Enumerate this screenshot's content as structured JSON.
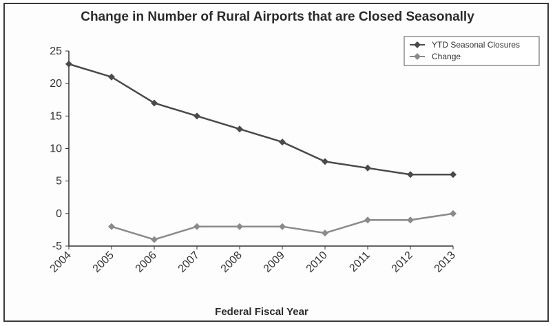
{
  "chart_data": {
    "type": "line",
    "title": "Change in Number of Rural Airports that are Closed Seasonally",
    "xlabel": "Federal Fiscal Year",
    "ylabel": "",
    "categories": [
      "2004",
      "2005",
      "2006",
      "2007",
      "2008",
      "2009",
      "2010",
      "2011",
      "2012",
      "2013"
    ],
    "ylim": [
      -5,
      25
    ],
    "yticks": [
      25,
      20,
      15,
      10,
      5,
      0,
      -5
    ],
    "grid": false,
    "legend_position": "top-right",
    "series": [
      {
        "name": "YTD Seasonal Closures",
        "color": "#4a4a4a",
        "values": [
          23,
          21,
          17,
          15,
          13,
          11,
          8,
          7,
          6,
          6
        ]
      },
      {
        "name": "Change",
        "color": "#8a8a8a",
        "values": [
          null,
          -2,
          -4,
          -2,
          -2,
          -2,
          -3,
          -1,
          -1,
          0
        ]
      }
    ]
  }
}
